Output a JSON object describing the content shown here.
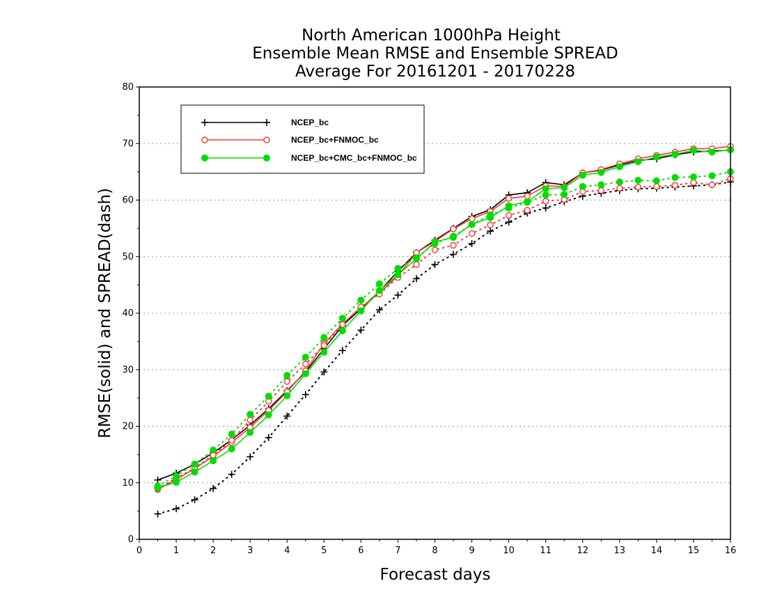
{
  "chart_data": {
    "type": "line",
    "title": [
      "North American 1000hPa Height",
      "Ensemble Mean RMSE and Ensemble SPREAD",
      "Average For 20161201 - 20170228"
    ],
    "xlabel": "Forecast days",
    "ylabel": "RMSE(solid) and SPREAD(dash)",
    "xlim": [
      0,
      16
    ],
    "ylim": [
      0,
      80
    ],
    "xticks": [
      "0",
      "1",
      "2",
      "3",
      "4",
      "5",
      "6",
      "7",
      "8",
      "9",
      "10",
      "11",
      "12",
      "13",
      "14",
      "15",
      "16"
    ],
    "yticks": [
      "0",
      "10",
      "20",
      "30",
      "40",
      "50",
      "60",
      "70",
      "80"
    ],
    "grid": "horizontal dotted",
    "legend_position": "top-left",
    "x": [
      0.5,
      1,
      1.5,
      2,
      2.5,
      3,
      3.5,
      4,
      4.5,
      5,
      5.5,
      6,
      6.5,
      7,
      7.5,
      8,
      8.5,
      9,
      9.5,
      10,
      10.5,
      11,
      11.5,
      12,
      12.5,
      13,
      13.5,
      14,
      14.5,
      15,
      15.5,
      16
    ],
    "series": [
      {
        "name": "NCEP_bc",
        "color": "#000000",
        "marker": "plus",
        "rmse": [
          10.5,
          11.7,
          13.3,
          15.3,
          17.6,
          20.2,
          23.1,
          26.3,
          29.6,
          33.7,
          37.8,
          40.8,
          43.9,
          47.4,
          50.7,
          52.9,
          55.0,
          57.1,
          58.3,
          60.9,
          61.3,
          63.1,
          62.7,
          64.8,
          65.3,
          66.2,
          67.0,
          67.3,
          68.0,
          68.5,
          68.7,
          68.8
        ],
        "spread": [
          4.5,
          5.4,
          7.0,
          9.0,
          11.5,
          14.6,
          18.0,
          21.8,
          25.6,
          29.6,
          33.4,
          37.0,
          40.6,
          43.2,
          46.1,
          48.6,
          50.4,
          52.3,
          54.5,
          56.1,
          57.7,
          58.6,
          59.7,
          60.7,
          61.2,
          61.7,
          62.0,
          62.1,
          62.3,
          62.5,
          62.7,
          63.2
        ]
      },
      {
        "name": "NCEP_bc+FNMOC_bc",
        "color": "#ff3333",
        "marker": "circle-open",
        "rmse": [
          8.8,
          10.6,
          12.5,
          14.7,
          17.1,
          19.8,
          22.8,
          26.1,
          29.8,
          34.6,
          38.1,
          41.0,
          43.6,
          46.6,
          50.7,
          52.7,
          54.9,
          56.7,
          58.0,
          60.3,
          60.7,
          62.5,
          62.4,
          64.8,
          65.4,
          66.4,
          67.3,
          67.9,
          68.5,
          69.1,
          69.1,
          69.5
        ],
        "spread": [
          9.0,
          10.8,
          12.6,
          14.9,
          17.5,
          21.1,
          24.4,
          27.9,
          31.0,
          34.3,
          38.0,
          41.1,
          43.4,
          46.3,
          48.6,
          51.2,
          52.0,
          54.1,
          55.6,
          57.3,
          58.2,
          59.8,
          60.1,
          61.5,
          61.7,
          62.1,
          62.3,
          62.4,
          62.6,
          63.1,
          62.7,
          63.8
        ]
      },
      {
        "name": "NCEP_bc+CMC_bc+FNMOC_bc",
        "color": "#00dd00",
        "marker": "circle-filled",
        "rmse": [
          9.1,
          10.1,
          11.9,
          13.9,
          16.0,
          18.9,
          22.0,
          25.4,
          29.3,
          33.1,
          36.9,
          40.4,
          44.0,
          46.8,
          49.6,
          52.6,
          53.4,
          55.7,
          56.9,
          59.0,
          59.7,
          62.0,
          62.2,
          64.4,
          64.9,
          65.9,
          66.8,
          67.6,
          68.1,
          68.8,
          68.5,
          68.9
        ],
        "spread": [
          9.4,
          11.2,
          13.3,
          15.8,
          18.6,
          22.1,
          25.3,
          29.0,
          32.2,
          35.7,
          39.1,
          42.3,
          45.2,
          47.9,
          49.8,
          52.3,
          53.6,
          55.7,
          57.4,
          58.6,
          59.6,
          60.9,
          61.0,
          62.4,
          62.7,
          63.2,
          63.5,
          63.4,
          64.0,
          64.1,
          64.3,
          65.0
        ]
      }
    ]
  }
}
